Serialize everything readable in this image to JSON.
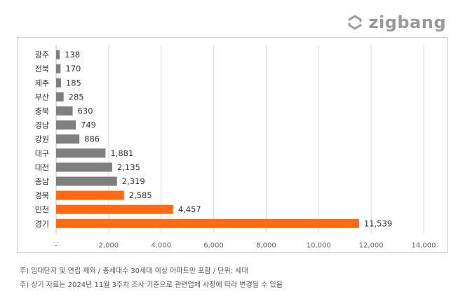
{
  "brand": {
    "name": "zigbang",
    "icon": "zigbang-logo-icon"
  },
  "chart_data": {
    "type": "bar",
    "orientation": "horizontal",
    "categories": [
      "광주",
      "전북",
      "제주",
      "부산",
      "충북",
      "경남",
      "강원",
      "대구",
      "대전",
      "충남",
      "경북",
      "인천",
      "경기"
    ],
    "values": [
      138,
      170,
      185,
      285,
      630,
      749,
      886,
      1881,
      2135,
      2319,
      2585,
      4457,
      11539
    ],
    "value_labels": [
      "138",
      "170",
      "185",
      "285",
      "630",
      "749",
      "886",
      "1,881",
      "2,135",
      "2,319",
      "2,585",
      "4,457",
      "11,539"
    ],
    "highlighted": [
      "경북",
      "인천",
      "경기"
    ],
    "xlim": [
      0,
      14000
    ],
    "x_ticks": [
      0,
      2000,
      4000,
      6000,
      8000,
      10000,
      12000,
      14000
    ],
    "x_tick_labels": [
      "-",
      "2,000",
      "4,000",
      "6,000",
      "8,000",
      "10,000",
      "12,000",
      "14,000"
    ],
    "grid": "vertical",
    "colors": {
      "default": "#7f7f7f",
      "highlight": "#ff6a13",
      "grid": "#d9d9d9"
    }
  },
  "notes": [
    "주) 임대단지 및 연립 제외 / 총세대수 30세대 이상 아파트만 포함 / 단위: 세대",
    "주) 상기 자료는 2024년 11월 3주차 조사 기준으로 관련업체 사정에 따라 변경될 수 있음"
  ]
}
